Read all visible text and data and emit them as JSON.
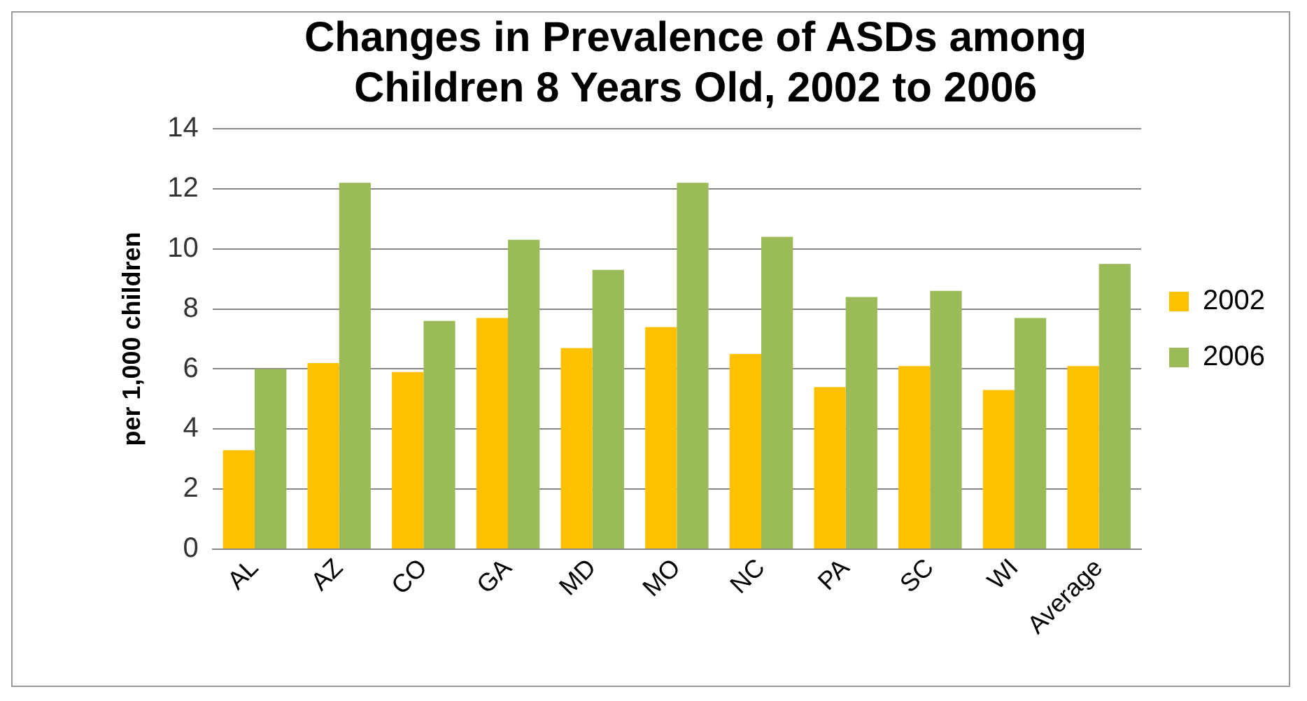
{
  "chart_data": {
    "type": "bar",
    "title": [
      "Changes in Prevalence of ASDs among",
      "Children 8 Years Old, 2002 to 2006"
    ],
    "ylabel": "per 1,000 children",
    "categories": [
      "AL",
      "AZ",
      "CO",
      "GA",
      "MD",
      "MO",
      "NC",
      "PA",
      "SC",
      "WI",
      "Average"
    ],
    "series": [
      {
        "name": "2002",
        "color": "#ffc000",
        "values": [
          3.3,
          6.2,
          5.9,
          7.7,
          6.7,
          7.4,
          6.5,
          5.4,
          6.1,
          5.3,
          6.1
        ]
      },
      {
        "name": "2006",
        "color": "#9bbb59",
        "values": [
          6.0,
          12.2,
          7.6,
          10.3,
          9.3,
          12.2,
          10.4,
          8.4,
          8.6,
          7.7,
          9.5
        ]
      }
    ],
    "ylim": [
      0,
      14
    ],
    "yticks": [
      0,
      2,
      4,
      6,
      8,
      10,
      12,
      14
    ],
    "grid": "y",
    "legend": "right"
  }
}
